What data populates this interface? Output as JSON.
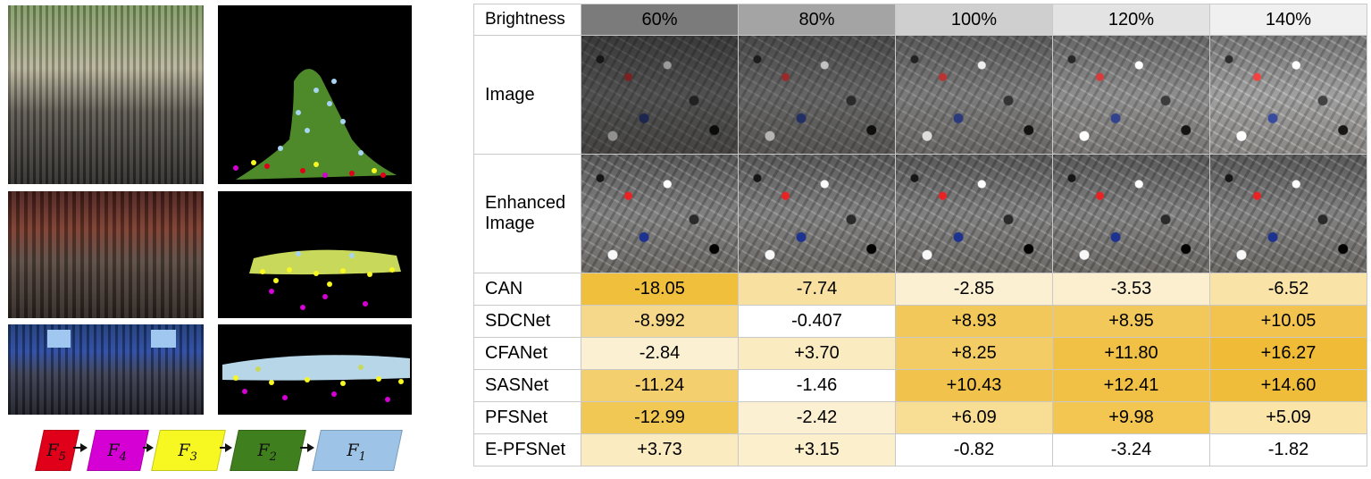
{
  "flow": {
    "nodes": [
      {
        "sym": "F",
        "sub": "5",
        "color": "#e0001a"
      },
      {
        "sym": "F",
        "sub": "4",
        "color": "#d400d4"
      },
      {
        "sym": "F",
        "sub": "3",
        "color": "#f7f722"
      },
      {
        "sym": "F",
        "sub": "2",
        "color": "#3f7f1e"
      },
      {
        "sym": "F",
        "sub": "1",
        "color": "#9dc3e6"
      }
    ]
  },
  "table": {
    "header_label": "Brightness",
    "levels": [
      "60%",
      "80%",
      "100%",
      "120%",
      "140%"
    ],
    "header_colors": [
      "#7b7b7b",
      "#a4a4a4",
      "#cfcfcf",
      "#e3e3e3",
      "#f0f0f0"
    ],
    "image_label": "Image",
    "enhanced_label_line1": "Enhanced",
    "enhanced_label_line2": "Image",
    "image_brightness": [
      0.65,
      0.82,
      1.0,
      1.15,
      1.3
    ],
    "rows": [
      {
        "name": "CAN",
        "values": [
          "-18.05",
          "-7.74",
          "-2.85",
          "-3.53",
          "-6.52"
        ],
        "colors": [
          "#f0bf3c",
          "#f8e1a0",
          "#fcf0d2",
          "#fcefd0",
          "#f9e3a6"
        ]
      },
      {
        "name": "SDCNet",
        "values": [
          "-8.992",
          "-0.407",
          "+8.93",
          "+8.95",
          "+10.05"
        ],
        "colors": [
          "#f6d88a",
          "#ffffff",
          "#f3c85a",
          "#f3c85a",
          "#f2c44f"
        ]
      },
      {
        "name": "CFANet",
        "values": [
          "-2.84",
          "+3.70",
          "+8.25",
          "+11.80",
          "+16.27"
        ],
        "colors": [
          "#fcf0d2",
          "#fbebc0",
          "#f3cc66",
          "#f1c146",
          "#f0bb36"
        ]
      },
      {
        "name": "SASNet",
        "values": [
          "-11.24",
          "-1.46",
          "+10.43",
          "+12.41",
          "+14.60"
        ],
        "colors": [
          "#f4cf6e",
          "#ffffff",
          "#f1c34c",
          "#f1c146",
          "#f0bd3b"
        ]
      },
      {
        "name": "PFSNet",
        "values": [
          "-12.99",
          "-2.42",
          "+6.09",
          "+9.98",
          "+5.09"
        ],
        "colors": [
          "#f2c855",
          "#fcf0d2",
          "#f8dd94",
          "#f2c651",
          "#fae4a8"
        ]
      },
      {
        "name": "E-PFSNet",
        "values": [
          "+3.73",
          "+3.15",
          "-0.82",
          "-3.24",
          "-1.82"
        ],
        "colors": [
          "#fbebc0",
          "#fcefcb",
          "#ffffff",
          "#ffffff",
          "#ffffff"
        ]
      }
    ]
  }
}
